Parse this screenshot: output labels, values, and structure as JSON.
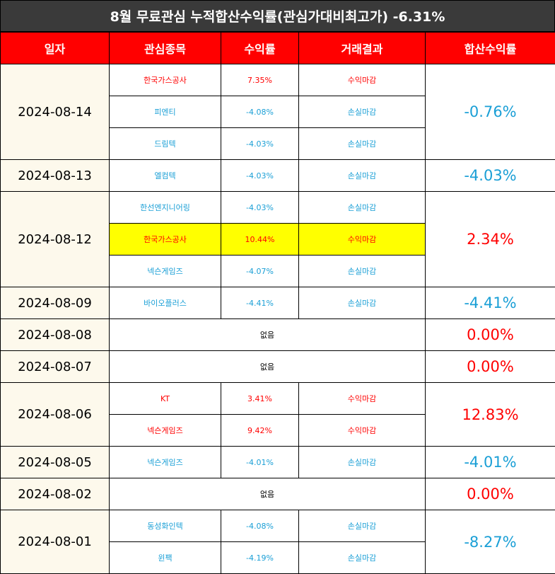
{
  "title": "8월 무료관심 누적합산수익률(관심가대비최고가) -6.31%",
  "headers": [
    "일자",
    "관심종목",
    "수익률",
    "거래결과",
    "합산수익률"
  ],
  "rows": [
    {
      "date": "2024-08-14",
      "total": "-0.76%",
      "total_color": "blue",
      "trades": [
        {
          "stock": "한국가스공사",
          "ret": "7.35%",
          "result": "수익마감",
          "color": "red"
        },
        {
          "stock": "피엔티",
          "ret": "-4.08%",
          "result": "손실마감",
          "color": "blue"
        },
        {
          "stock": "드림텍",
          "ret": "-4.03%",
          "result": "손실마감",
          "color": "blue"
        }
      ]
    },
    {
      "date": "2024-08-13",
      "total": "-4.03%",
      "total_color": "blue",
      "trades": [
        {
          "stock": "엘컴텍",
          "ret": "-4.03%",
          "result": "손실마감",
          "color": "blue"
        }
      ]
    },
    {
      "date": "2024-08-12",
      "total": "2.34%",
      "total_color": "red",
      "trades": [
        {
          "stock": "한선엔지니어링",
          "ret": "-4.03%",
          "result": "손실마감",
          "color": "blue"
        },
        {
          "stock": "한국가스공사",
          "ret": "10.44%",
          "result": "수익마감",
          "color": "red",
          "highlight": true
        },
        {
          "stock": "넥슨게임즈",
          "ret": "-4.07%",
          "result": "손실마감",
          "color": "blue"
        }
      ]
    },
    {
      "date": "2024-08-09",
      "total": "-4.41%",
      "total_color": "blue",
      "trades": [
        {
          "stock": "바이오플러스",
          "ret": "-4.41%",
          "result": "손실마감",
          "color": "blue"
        }
      ]
    },
    {
      "date": "2024-08-08",
      "total": "0.00%",
      "total_color": "red",
      "none": "없음",
      "trades": []
    },
    {
      "date": "2024-08-07",
      "total": "0.00%",
      "total_color": "red",
      "none": "없음",
      "trades": []
    },
    {
      "date": "2024-08-06",
      "total": "12.83%",
      "total_color": "red",
      "trades": [
        {
          "stock": "KT",
          "ret": "3.41%",
          "result": "수익마감",
          "color": "red"
        },
        {
          "stock": "넥슨게임즈",
          "ret": "9.42%",
          "result": "수익마감",
          "color": "red"
        }
      ]
    },
    {
      "date": "2024-08-05",
      "total": "-4.01%",
      "total_color": "blue",
      "trades": [
        {
          "stock": "넥슨게임즈",
          "ret": "-4.01%",
          "result": "손실마감",
          "color": "blue"
        }
      ]
    },
    {
      "date": "2024-08-02",
      "total": "0.00%",
      "total_color": "red",
      "none": "없음",
      "trades": []
    },
    {
      "date": "2024-08-01",
      "total": "-8.27%",
      "total_color": "blue",
      "trades": [
        {
          "stock": "동성화인텍",
          "ret": "-4.08%",
          "result": "손실마감",
          "color": "blue"
        },
        {
          "stock": "윈팩",
          "ret": "-4.19%",
          "result": "손실마감",
          "color": "blue"
        }
      ]
    }
  ]
}
